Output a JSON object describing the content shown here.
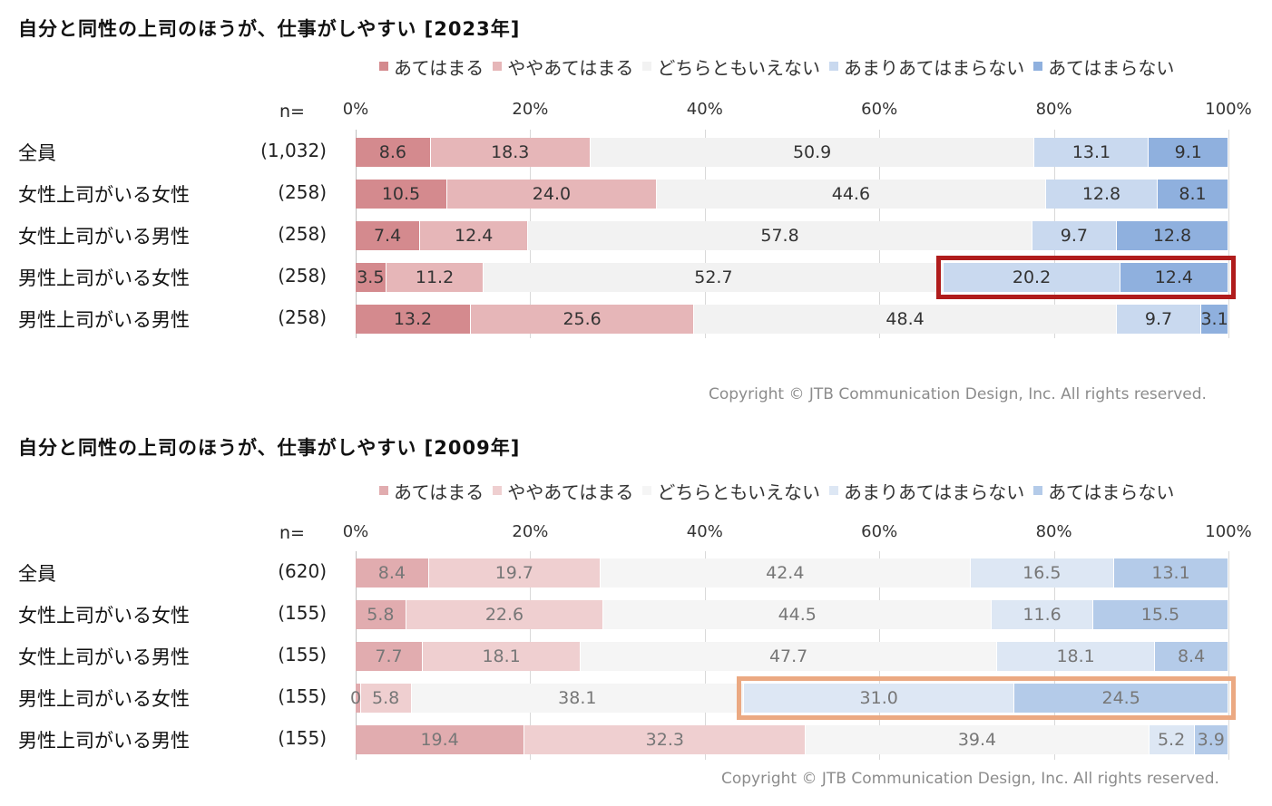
{
  "legend": [
    "あてはまる",
    "ややあてはまる",
    "どちらともいえない",
    "あまりあてはまらない",
    "あてはまらない"
  ],
  "n_label": "n=",
  "ticks": [
    "0%",
    "20%",
    "40%",
    "60%",
    "80%",
    "100%"
  ],
  "copyright": "Copyright © JTB Communication Design, Inc. All rights reserved.",
  "colors_2023": [
    "#d48a8e",
    "#e6b6b8",
    "#f2f2f2",
    "#c9d9ef",
    "#8fb0de"
  ],
  "colors_2009": [
    "#e1acaf",
    "#efcfd0",
    "#f5f5f5",
    "#dde7f4",
    "#b4cbe9"
  ],
  "highlight_2023_color": "#b01c1c",
  "highlight_2009_color": "#eba982",
  "chart_data": [
    {
      "type": "bar",
      "orientation": "horizontal-stacked-percent",
      "title": "自分と同性の上司のほうが、仕事がしやすい [2023年]",
      "xlim": [
        0,
        100
      ],
      "categories": [
        "全員",
        "女性上司がいる女性",
        "女性上司がいる男性",
        "男性上司がいる女性",
        "男性上司がいる男性"
      ],
      "n": [
        "(1,032)",
        "(258)",
        "(258)",
        "(258)",
        "(258)"
      ],
      "series": [
        {
          "name": "あてはまる",
          "values": [
            8.6,
            10.5,
            7.4,
            3.5,
            13.2
          ]
        },
        {
          "name": "ややあてはまる",
          "values": [
            18.3,
            24.0,
            12.4,
            11.2,
            25.6
          ]
        },
        {
          "name": "どちらともいえない",
          "values": [
            50.9,
            44.6,
            57.8,
            52.7,
            48.4
          ]
        },
        {
          "name": "あまりあてはまらない",
          "values": [
            13.1,
            12.8,
            9.7,
            20.2,
            9.7
          ]
        },
        {
          "name": "あてはまらない",
          "values": [
            9.1,
            8.1,
            12.8,
            12.4,
            3.1
          ]
        }
      ],
      "labels": [
        [
          "8.6",
          "18.3",
          "50.9",
          "13.1",
          "9.1"
        ],
        [
          "10.5",
          "24.0",
          "44.6",
          "12.8",
          "8.1"
        ],
        [
          "7.4",
          "12.4",
          "57.8",
          "9.7",
          "12.8"
        ],
        [
          "3.5",
          "11.2",
          "52.7",
          "20.2",
          "12.4"
        ],
        [
          "13.2",
          "25.6",
          "48.4",
          "9.7",
          "3.1"
        ]
      ],
      "highlight": {
        "row": 3,
        "from_series": 3
      }
    },
    {
      "type": "bar",
      "orientation": "horizontal-stacked-percent",
      "title": "自分と同性の上司のほうが、仕事がしやすい [2009年]",
      "xlim": [
        0,
        100
      ],
      "categories": [
        "全員",
        "女性上司がいる女性",
        "女性上司がいる男性",
        "男性上司がいる女性",
        "男性上司がいる男性"
      ],
      "n": [
        "(620)",
        "(155)",
        "(155)",
        "(155)",
        "(155)"
      ],
      "series": [
        {
          "name": "あてはまる",
          "values": [
            8.4,
            5.8,
            7.7,
            0.6,
            19.4
          ]
        },
        {
          "name": "ややあてはまる",
          "values": [
            19.7,
            22.6,
            18.1,
            5.8,
            32.3
          ]
        },
        {
          "name": "どちらともいえない",
          "values": [
            42.4,
            44.5,
            47.7,
            38.1,
            39.4
          ]
        },
        {
          "name": "あまりあてはまらない",
          "values": [
            16.5,
            11.6,
            18.1,
            31.0,
            5.2
          ]
        },
        {
          "name": "あてはまらない",
          "values": [
            13.1,
            15.5,
            8.4,
            24.5,
            3.9
          ]
        }
      ],
      "labels": [
        [
          "8.4",
          "19.7",
          "42.4",
          "16.5",
          "13.1"
        ],
        [
          "5.8",
          "22.6",
          "44.5",
          "11.6",
          "15.5"
        ],
        [
          "7.7",
          "18.1",
          "47.7",
          "18.1",
          "8.4"
        ],
        [
          "0.6",
          "5.8",
          "38.1",
          "31.0",
          "24.5"
        ],
        [
          "19.4",
          "32.3",
          "39.4",
          "5.2",
          "3.9"
        ]
      ],
      "highlight": {
        "row": 3,
        "from_series": 3
      }
    }
  ]
}
